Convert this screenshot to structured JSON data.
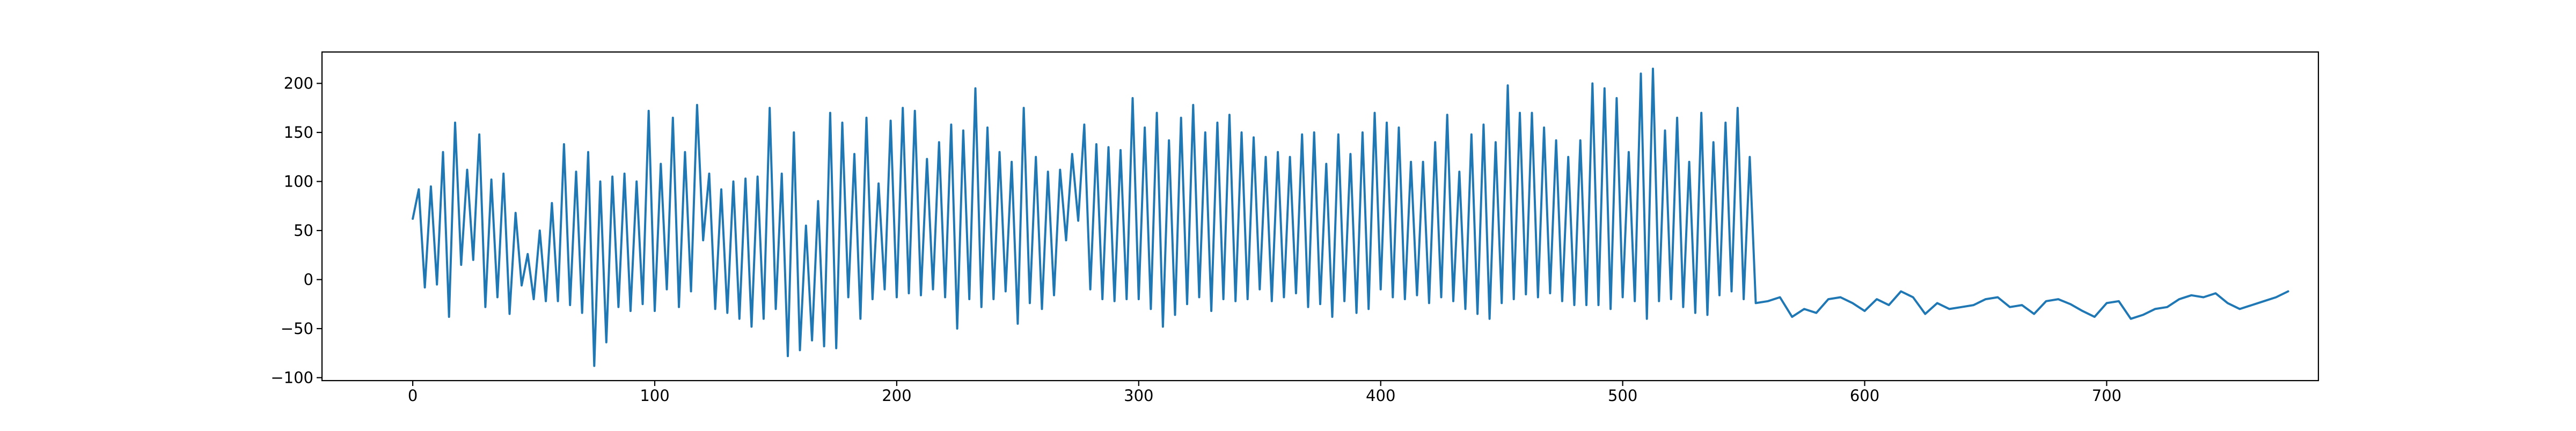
{
  "chart_data": {
    "type": "line",
    "title": "",
    "xlabel": "",
    "ylabel": "",
    "xlim": [
      -37.5,
      787.5
    ],
    "ylim": [
      -103,
      232
    ],
    "x_ticks": [
      0,
      100,
      200,
      300,
      400,
      500,
      600,
      700
    ],
    "y_ticks": [
      -100,
      -50,
      0,
      50,
      100,
      150,
      200
    ],
    "grid": false,
    "legend": "none",
    "series": [
      {
        "color": "#1f77b4",
        "x_start": 0,
        "x_step": 5,
        "values": [
          62,
          -8,
          -5,
          -38,
          15,
          20,
          -28,
          -18,
          -35,
          -6,
          -20,
          -22,
          -22,
          -26,
          -34,
          -88,
          -64,
          -28,
          -32,
          -25,
          -32,
          -10,
          -28,
          -12,
          40,
          -30,
          -34,
          -40,
          -48,
          -40,
          -30,
          -78,
          -72,
          -62,
          -68,
          -70,
          -18,
          -40,
          -20,
          -10,
          -18,
          -14,
          -16,
          -10,
          -18,
          -50,
          -20,
          -28,
          -20,
          -12,
          -45,
          -24,
          -30,
          -16,
          40,
          60,
          -10,
          -20,
          -22,
          -20,
          -20,
          -30,
          -48,
          -36,
          -25,
          -18,
          -32,
          -20,
          -22,
          -20,
          -10,
          -22,
          -18,
          -14,
          -28,
          -25,
          -38,
          -22,
          -34,
          -30,
          -10,
          -18,
          -20,
          -16,
          -24,
          -18,
          -22,
          -30,
          -35,
          -40,
          -24,
          -20,
          -15,
          -18,
          -14,
          -22,
          -26,
          -26,
          -26,
          -30,
          -18,
          -22,
          -40,
          -22,
          -20,
          -28,
          -34,
          -36,
          -16,
          -12,
          -20,
          -24,
          -22,
          -18,
          -38,
          -30,
          -34,
          -20,
          -18,
          -24,
          -32,
          -20,
          -26,
          -12,
          -18,
          -35,
          -24,
          -30,
          -28,
          -26,
          -20,
          -18,
          -28,
          -26,
          -35,
          -22,
          -20,
          -25,
          -32,
          -38,
          -24,
          -22,
          -40,
          -36,
          -30,
          -28,
          -20,
          -16,
          -18,
          -14,
          -24,
          -30,
          -26,
          -22,
          -18,
          -12
        ],
        "peaks": [
          92,
          95,
          130,
          160,
          112,
          148,
          102,
          108,
          68,
          26,
          50,
          78,
          138,
          110,
          130,
          100,
          105,
          108,
          100,
          172,
          118,
          165,
          130,
          178,
          108,
          92,
          100,
          103,
          105,
          175,
          108,
          150,
          55,
          80,
          170,
          160,
          128,
          165,
          98,
          162,
          175,
          172,
          123,
          140,
          158,
          152,
          195,
          155,
          130,
          120,
          175,
          125,
          110,
          112,
          128,
          158,
          138,
          135,
          132,
          185,
          155,
          170,
          142,
          165,
          178,
          150,
          160,
          168,
          150,
          145,
          125,
          130,
          125,
          148,
          150,
          118,
          148,
          128,
          150,
          170,
          160,
          155,
          120,
          120,
          140,
          168,
          110,
          148,
          158,
          140,
          198,
          170,
          170,
          155,
          142,
          125,
          142,
          200,
          195,
          185,
          130,
          210,
          215,
          152,
          165,
          120,
          170,
          140,
          160,
          175,
          125
        ]
      }
    ]
  }
}
